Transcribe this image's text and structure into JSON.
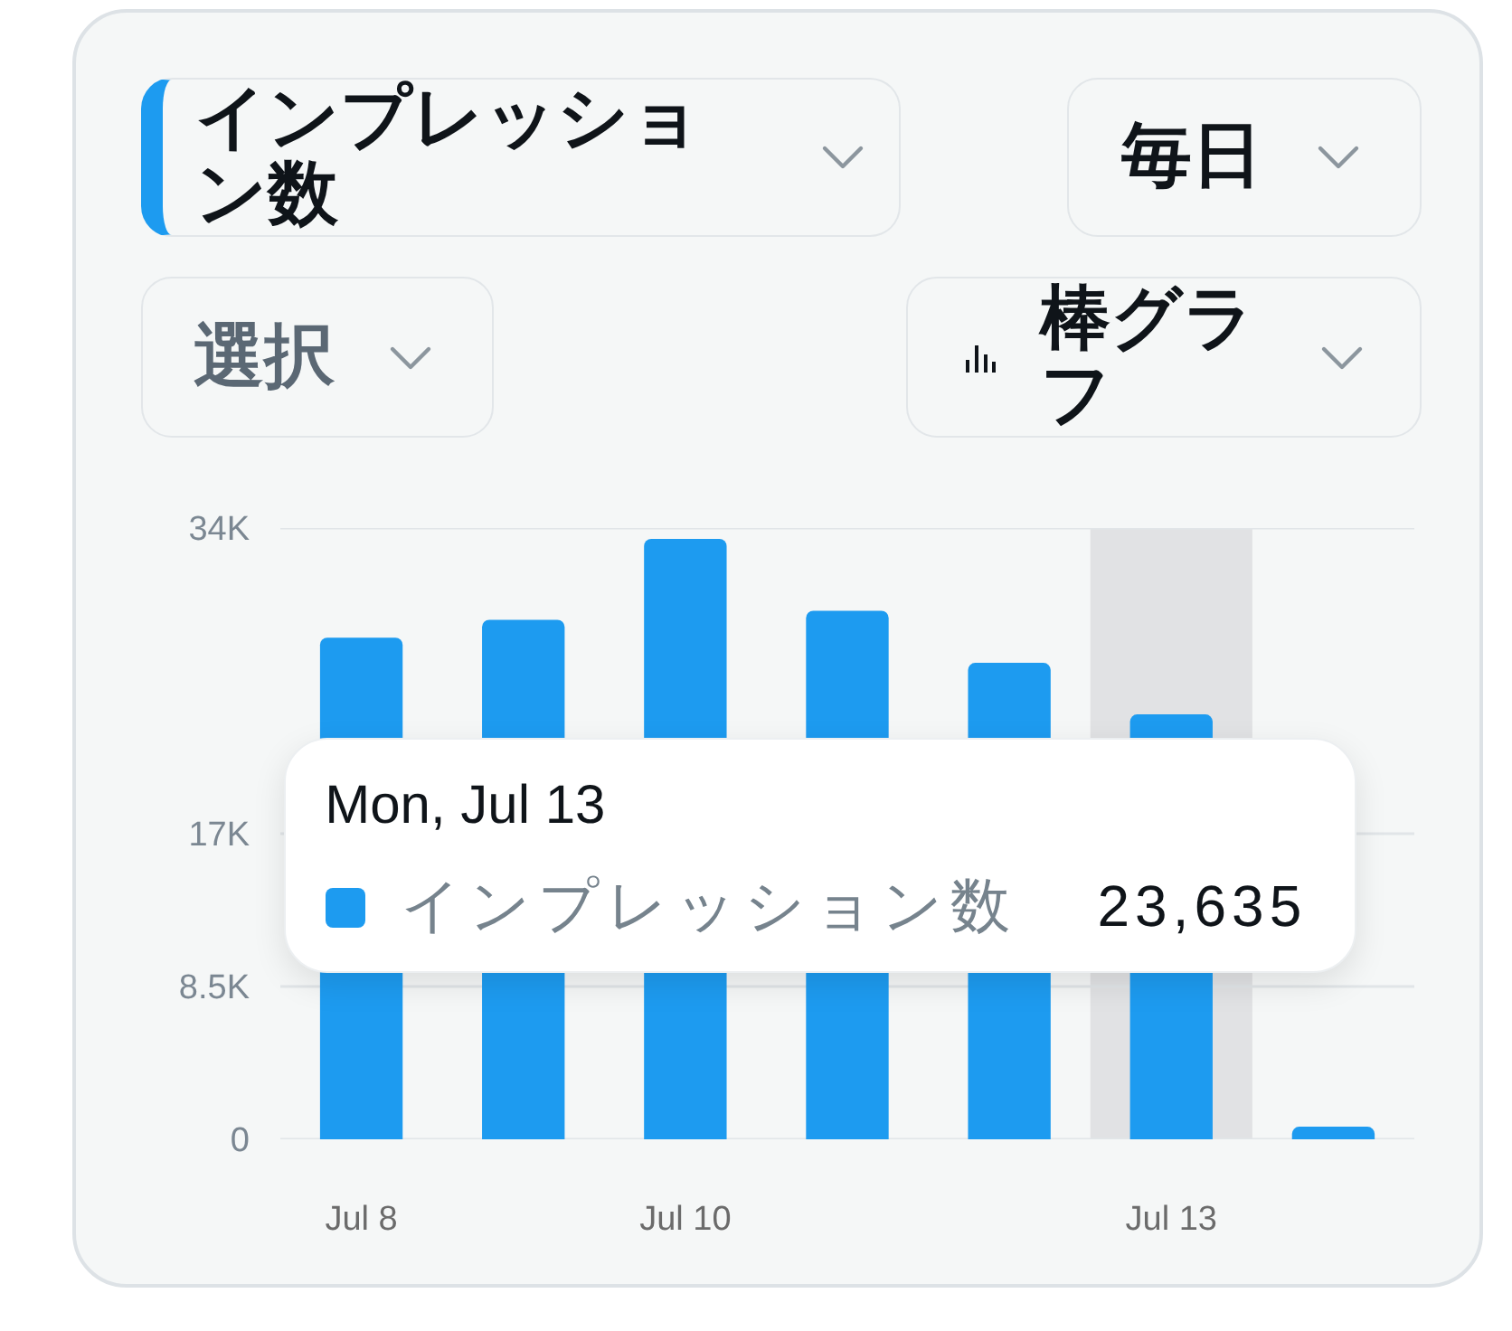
{
  "chart_data": {
    "type": "bar",
    "categories": [
      "Jul 8",
      null,
      "Jul 10",
      null,
      null,
      "Jul 13",
      null
    ],
    "series": [
      {
        "name": "インプレッション数",
        "color": "#1d9bf0",
        "values": [
          27900,
          28900,
          33400,
          29400,
          26500,
          23635,
          700
        ],
        "value_labels": [
          null,
          null,
          null,
          null,
          null,
          "23,635",
          null
        ]
      }
    ],
    "ylim": [
      0,
      34000
    ],
    "yticks": [
      0,
      {
        "value": 8500,
        "label": "8.5K"
      },
      {
        "value": 17000,
        "label": "17K"
      },
      {
        "value": 34000,
        "label": "34K"
      }
    ],
    "grid": "y",
    "bands": [
      {
        "axis": "x",
        "from": "Jul 13",
        "to": "Jul 13",
        "color": "#e1e2e4"
      }
    ],
    "annotations": [
      "インプレッション数",
      "毎日",
      "選択",
      "棒グラフ",
      "Mon, Jul 13"
    ]
  }
}
